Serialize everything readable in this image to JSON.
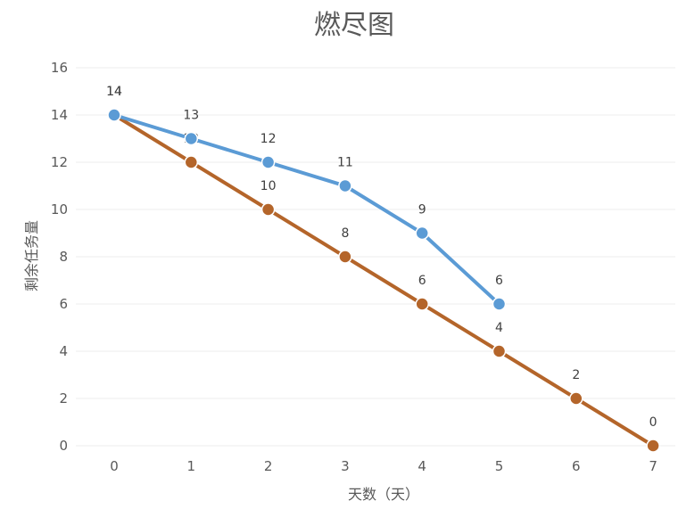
{
  "chart_data": {
    "type": "line",
    "title": "燃尽图",
    "xlabel": "天数（天）",
    "ylabel": "剩余任务量",
    "x": [
      0,
      1,
      2,
      3,
      4,
      5,
      6,
      7
    ],
    "ylim": [
      0,
      16
    ],
    "yticks": [
      0,
      2,
      4,
      6,
      8,
      10,
      12,
      14,
      16
    ],
    "grid": true,
    "series": [
      {
        "color": "#5B9BD5",
        "x": [
          0,
          1,
          2,
          3,
          4,
          5
        ],
        "values": [
          14,
          13,
          12,
          11,
          9,
          6
        ]
      },
      {
        "color": "#B4652A",
        "x": [
          0,
          1,
          2,
          3,
          4,
          5,
          6,
          7
        ],
        "values": [
          14,
          12,
          10,
          8,
          6,
          4,
          2,
          0
        ]
      }
    ]
  }
}
